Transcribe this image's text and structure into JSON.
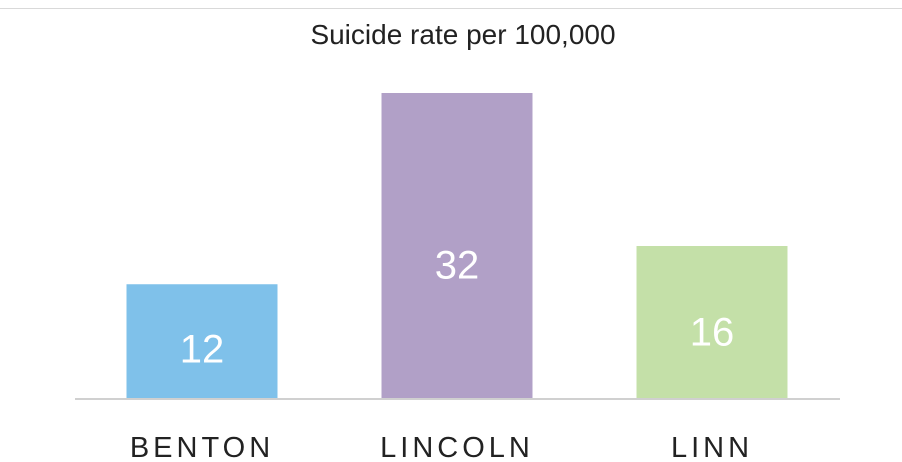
{
  "chart_data": {
    "type": "bar",
    "title": "Suicide rate per 100,000",
    "categories": [
      "BENTON",
      "LINCOLN",
      "LINN"
    ],
    "values": [
      12,
      32,
      16
    ],
    "data_labels": [
      "12",
      "32",
      "16"
    ],
    "colors": [
      "#7fc1ea",
      "#b1a0c7",
      "#c4e0a8"
    ],
    "ylim": [
      0,
      32
    ],
    "grid": false,
    "legend": "none",
    "xlabel": "",
    "ylabel": ""
  }
}
